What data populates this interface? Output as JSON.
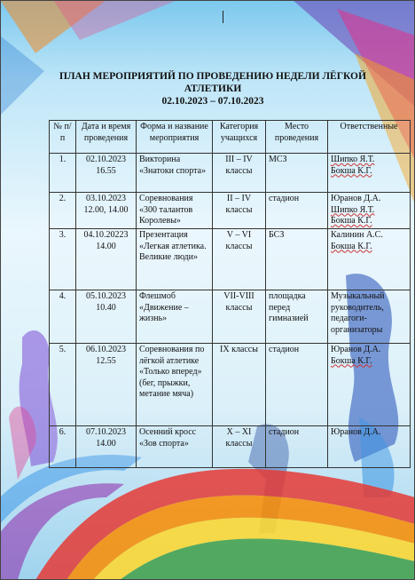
{
  "title": {
    "line1": "ПЛАН МЕРОПРИЯТИЙ ПО ПРОВЕДЕНИЮ НЕДЕЛИ ЛЁГКОЙ",
    "line2": "АТЛЕТИКИ",
    "dates": "02.10.2023 – 07.10.2023"
  },
  "table": {
    "headers": [
      "№ п/п",
      "Дата и время проведения",
      "Форма и название мероприятия",
      "Категория учащихся",
      "Место проведения",
      "Ответственные"
    ],
    "rows": [
      {
        "num": "1.",
        "date": "02.10.2023",
        "time": "16.55",
        "event": "Викторина «Знатоки спорта»",
        "category": "III – IV классы",
        "place": "МСЗ",
        "responsible": [
          "Шипко Я.Т.",
          "Бокша К.Г."
        ]
      },
      {
        "num": "2.",
        "date": "03.10.2023",
        "time": "12.00, 14.00",
        "event": "Соревнования «300 талантов Королевы»",
        "category": "II – IV классы",
        "place": "стадион",
        "responsible": [
          "Юранов Д.А.",
          "Шипко Я.Т.",
          "Бокша К.Г."
        ]
      },
      {
        "num": "3.",
        "date": "04.10.20223",
        "time": "14.00",
        "event": "Презентация «Легкая атлетика. Великие люди»",
        "category": "V – VI классы",
        "place": "БСЗ",
        "responsible": [
          "Калинин А.С.",
          "Бокша К.Г."
        ]
      },
      {
        "num": "4.",
        "date": "05.10.2023",
        "time": "10.40",
        "event": "Флешмоб «Движение – жизнь»",
        "category": "VII-VIII классы",
        "place": "площадка перед гимназией",
        "responsible": [
          "Музыкальный руководитель, педагоги-организаторы"
        ]
      },
      {
        "num": "5.",
        "date": "06.10.2023",
        "time": "12.55",
        "event": "Соревнования по лёгкой атлетике «Только вперед» (бег, прыжки, метание мяча)",
        "category": "IX классы",
        "place": "стадион",
        "responsible": [
          "Юранов Д.А.",
          "Бокша К.Г."
        ]
      },
      {
        "num": "6.",
        "date": "07.10.2023",
        "time": "14.00",
        "event": "Осенний кросс «Зов спорта»",
        "category": "X – XI классы",
        "place": "стадион",
        "responsible": [
          "Юранов Д.А."
        ]
      }
    ]
  }
}
